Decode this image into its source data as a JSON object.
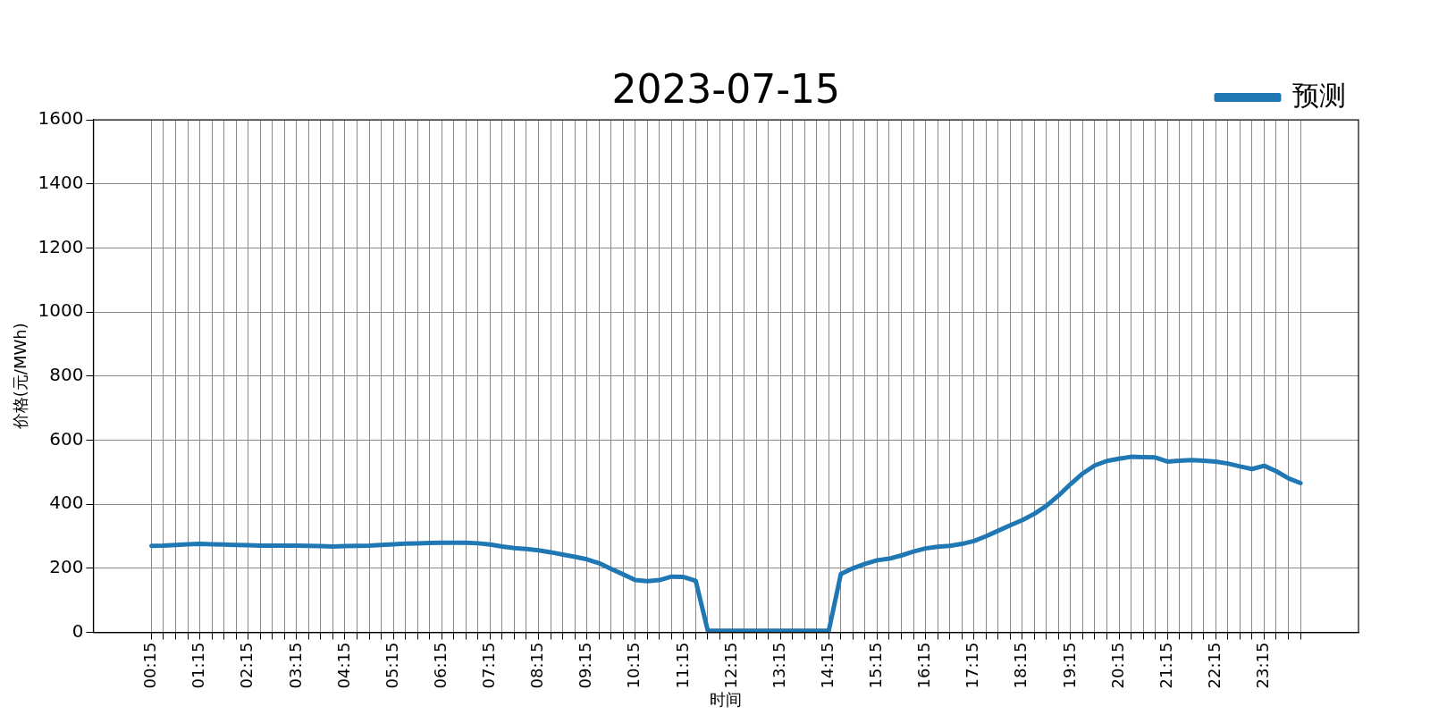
{
  "chart_data": {
    "type": "line",
    "title": "2023-07-15",
    "xlabel": "时间",
    "ylabel": "价格(元/MWh)",
    "categories": [
      "00:15",
      null,
      null,
      null,
      "01:15",
      null,
      null,
      null,
      "02:15",
      null,
      null,
      null,
      "03:15",
      null,
      null,
      null,
      "04:15",
      null,
      null,
      null,
      "05:15",
      null,
      null,
      null,
      "06:15",
      null,
      null,
      null,
      "07:15",
      null,
      null,
      null,
      "08:15",
      null,
      null,
      null,
      "09:15",
      null,
      null,
      null,
      "10:15",
      null,
      null,
      null,
      "11:15",
      null,
      null,
      null,
      "12:15",
      null,
      null,
      null,
      "13:15",
      null,
      null,
      null,
      "14:15",
      null,
      null,
      null,
      "15:15",
      null,
      null,
      null,
      "16:15",
      null,
      null,
      null,
      "17:15",
      null,
      null,
      null,
      "18:15",
      null,
      null,
      null,
      "19:15",
      null,
      null,
      null,
      "20:15",
      null,
      null,
      null,
      "21:15",
      null,
      null,
      null,
      "22:15",
      null,
      null,
      null,
      "23:15",
      null,
      null,
      null
    ],
    "series": [
      {
        "name": "预测",
        "color": "#1f77b4",
        "values": [
          270,
          271,
          273,
          275,
          276,
          275,
          274,
          273,
          272,
          271,
          271,
          271,
          271,
          270,
          269,
          268,
          269,
          270,
          271,
          273,
          275,
          277,
          278,
          279,
          280,
          280,
          280,
          278,
          274,
          268,
          263,
          260,
          256,
          250,
          243,
          236,
          228,
          216,
          198,
          181,
          163,
          160,
          163,
          174,
          173,
          161,
          5,
          5,
          5,
          5,
          5,
          5,
          5,
          5,
          5,
          5,
          5,
          182,
          200,
          214,
          225,
          230,
          240,
          252,
          262,
          267,
          270,
          276,
          285,
          300,
          317,
          334,
          350,
          370,
          395,
          427,
          463,
          496,
          521,
          535,
          542,
          548,
          547,
          546,
          533,
          536,
          538,
          536,
          533,
          527,
          518,
          510,
          520,
          503,
          481,
          466
        ]
      }
    ],
    "ylim": [
      0,
      1600
    ],
    "yticks": [
      0,
      200,
      400,
      600,
      800,
      1000,
      1200,
      1400,
      1600
    ],
    "grid": true,
    "legend": "top right",
    "line_style": "solid",
    "marker": "none"
  }
}
